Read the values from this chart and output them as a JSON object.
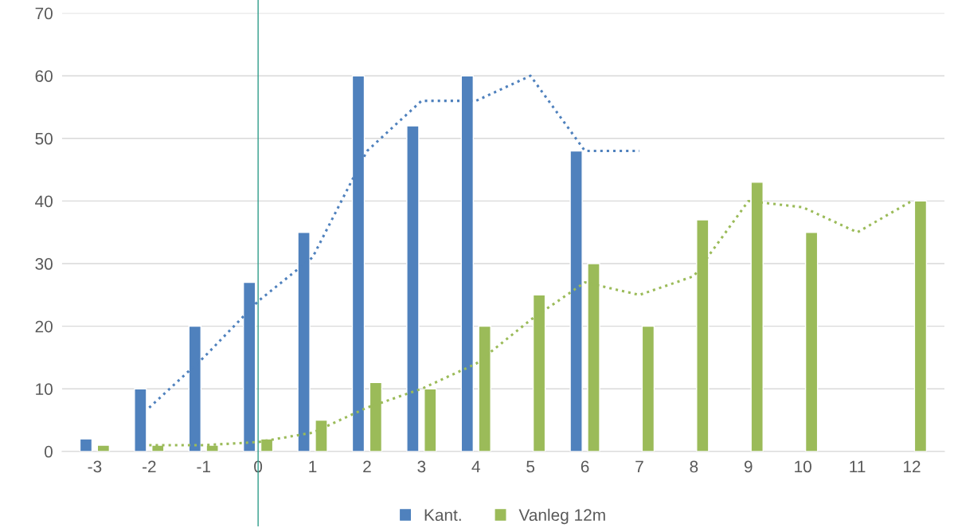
{
  "chart_data": {
    "type": "bar",
    "categories": [
      "-3",
      "-2",
      "-1",
      "0",
      "1",
      "2",
      "3",
      "4",
      "5",
      "6",
      "7",
      "8",
      "9",
      "10",
      "11",
      "12"
    ],
    "series": [
      {
        "name": "Kant.",
        "color": "#4f81bd",
        "values": [
          2,
          10,
          20,
          27,
          35,
          60,
          52,
          60,
          null,
          48,
          null,
          null,
          null,
          null,
          null,
          null
        ]
      },
      {
        "name": "Vanleg 12m",
        "color": "#9bbb59",
        "values": [
          1,
          1,
          1,
          2,
          5,
          11,
          10,
          20,
          25,
          30,
          20,
          37,
          43,
          35,
          null,
          40
        ]
      },
      {
        "type": "line",
        "line_style": "dotted",
        "color": "#4f81bd",
        "values": [
          null,
          7,
          15,
          24,
          31,
          48,
          56,
          56,
          60,
          48,
          48,
          null,
          null,
          null,
          null,
          null
        ]
      },
      {
        "type": "line",
        "line_style": "dotted",
        "color": "#9bbb59",
        "values": [
          null,
          1,
          1,
          1.5,
          3,
          7,
          10,
          14,
          21,
          27,
          25,
          28,
          40,
          39,
          35,
          40
        ]
      }
    ],
    "ylim": [
      0,
      70
    ],
    "yticks": [
      0,
      10,
      20,
      30,
      40,
      50,
      60,
      70
    ],
    "grid": "y",
    "legend": "bottom",
    "ref_lines": [
      {
        "axis": "x",
        "value": "0",
        "color": "#2e9c8a"
      }
    ]
  }
}
